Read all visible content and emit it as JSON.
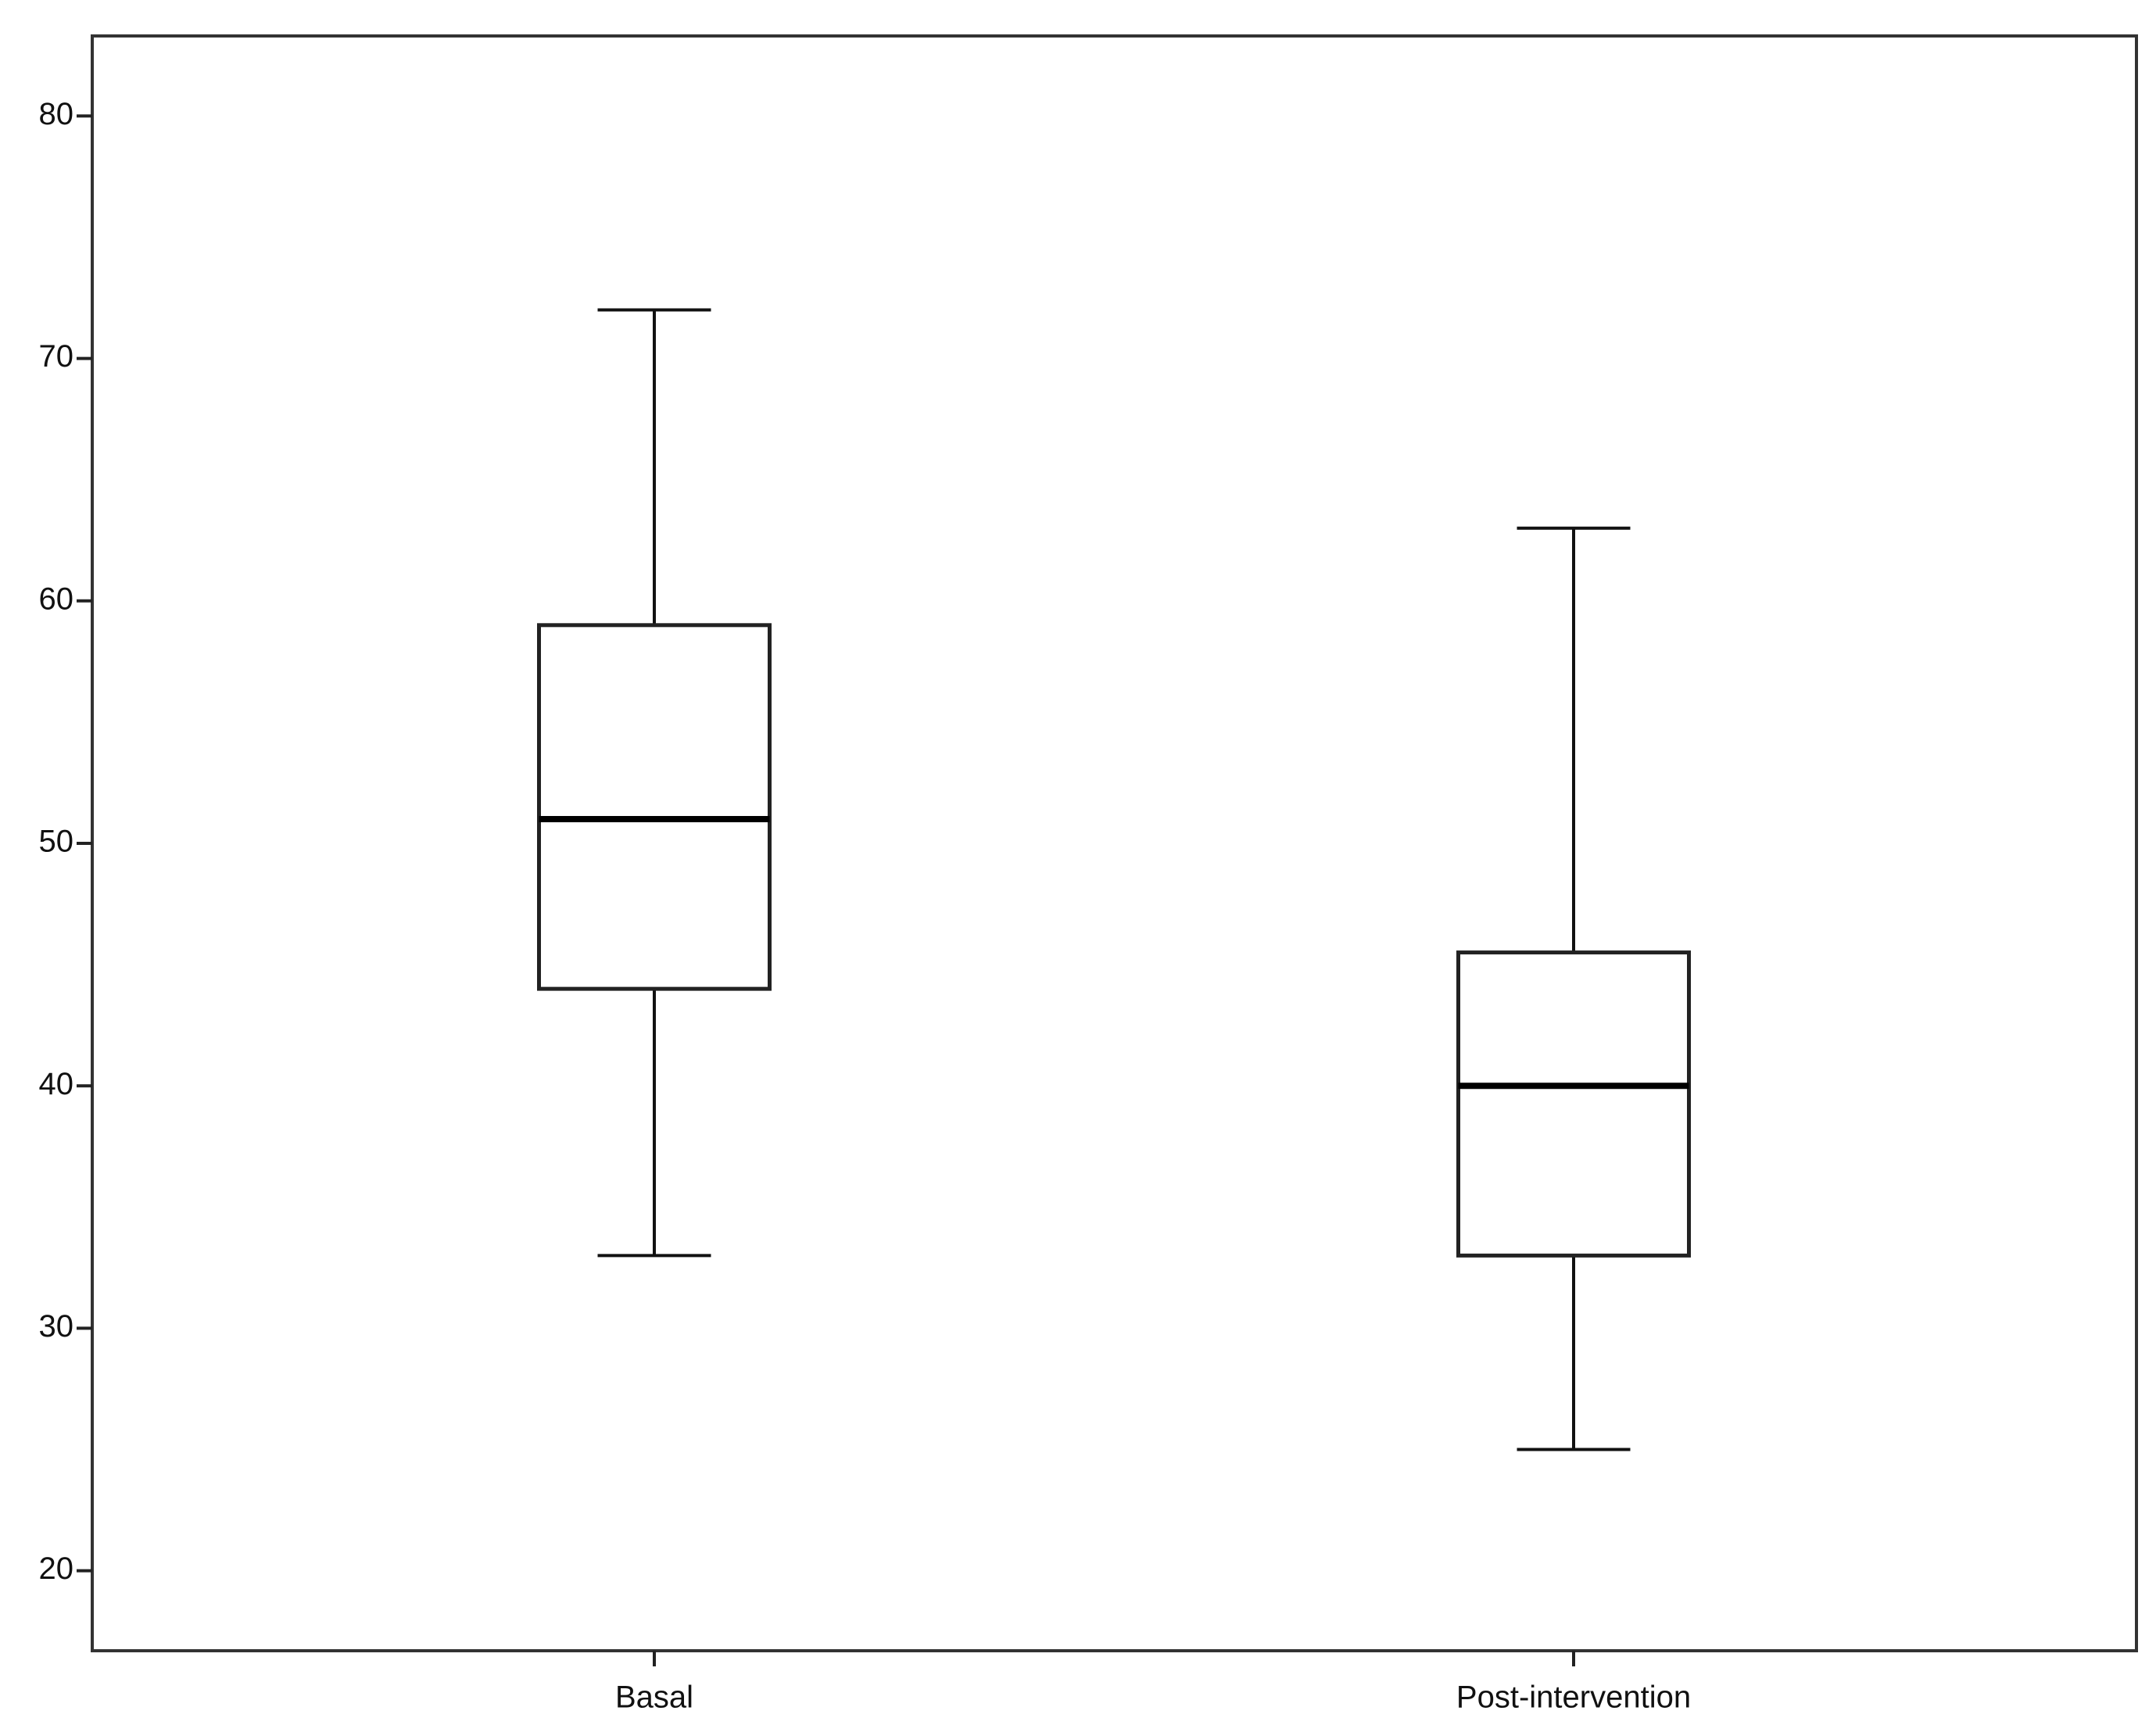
{
  "chart_data": {
    "type": "box",
    "categories": [
      "Basal",
      "Post-intervention"
    ],
    "boxes": [
      {
        "min": 33,
        "q1": 44,
        "median": 51,
        "q3": 59,
        "max": 72
      },
      {
        "min": 25,
        "q1": 33,
        "median": 40,
        "q3": 45.5,
        "max": 63
      }
    ],
    "color": "#ffffff",
    "ylim": [
      16.7,
      83.3
    ],
    "yticks": [
      20,
      30,
      40,
      50,
      60,
      70,
      80
    ],
    "grid": false
  }
}
